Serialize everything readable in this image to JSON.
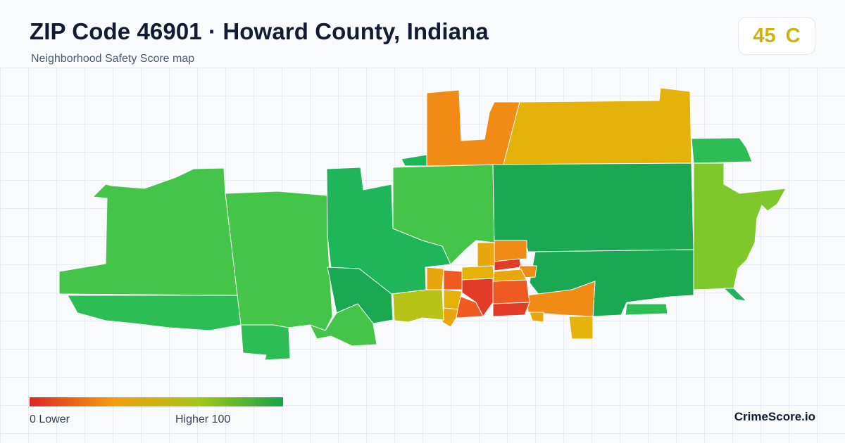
{
  "header": {
    "title": "ZIP Code 46901 · Howard County, Indiana",
    "subtitle": "Neighborhood Safety Score map"
  },
  "score": {
    "value": "45",
    "grade": "C",
    "color": "#cfb30f"
  },
  "legend": {
    "min_label": "0  Lower",
    "max_label": "Higher  100",
    "colors": [
      "#dc2626",
      "#f59e0b",
      "#a3c714",
      "#16a34a"
    ]
  },
  "brand": "CrimeScore.io",
  "map_colors": {
    "low": "#e23b26",
    "low_mid": "#ee5a1f",
    "mid_orange": "#f08c16",
    "mid_amber": "#eaa70d",
    "mid_yellow": "#e4b20b",
    "yellow_green": "#b6c417",
    "light_green": "#7fc82c",
    "green": "#44c449",
    "green_2": "#2dbd55",
    "teal_green": "#1fb559",
    "dark_green": "#1aa852"
  }
}
